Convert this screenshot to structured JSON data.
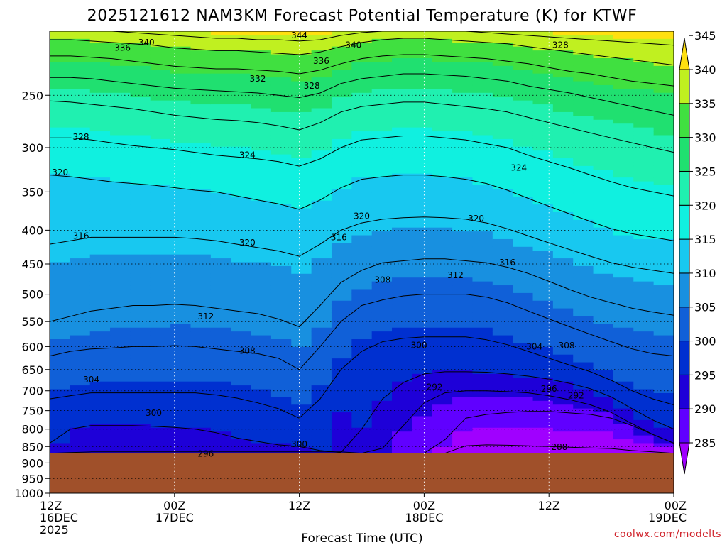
{
  "chart_data": {
    "type": "heatmap",
    "title": "2025121612 NAM3KM Forecast Potential Temperature (K) for KTWF",
    "xlabel": "Forecast Time (UTC)",
    "ylabel": "",
    "y_scale": "log-pressure",
    "y_inverted": true,
    "ylim_hpa": [
      1000,
      200
    ],
    "y_ticks": [
      250,
      300,
      350,
      400,
      450,
      500,
      550,
      600,
      650,
      700,
      750,
      800,
      850,
      900,
      950,
      1000
    ],
    "xlim_hours": [
      0,
      60
    ],
    "x_ticks": [
      {
        "hour": 0,
        "line1": "12Z",
        "line2": "16DEC",
        "line3": "2025"
      },
      {
        "hour": 12,
        "line1": "00Z",
        "line2": "17DEC",
        "line3": ""
      },
      {
        "hour": 24,
        "line1": "12Z",
        "line2": "",
        "line3": ""
      },
      {
        "hour": 36,
        "line1": "00Z",
        "line2": "18DEC",
        "line3": ""
      },
      {
        "hour": 48,
        "line1": "12Z",
        "line2": "",
        "line3": ""
      },
      {
        "hour": 60,
        "line1": "00Z",
        "line2": "19DEC",
        "line3": ""
      }
    ],
    "grid": "dotted",
    "surface_pressure_hpa": 870,
    "colorbar": {
      "levels": [
        285,
        290,
        295,
        300,
        305,
        310,
        315,
        320,
        325,
        330,
        335,
        340,
        345
      ],
      "colors": [
        "#a000ff",
        "#6000ff",
        "#1e00d8",
        "#0030d0",
        "#1060d8",
        "#1890e0",
        "#18c8f0",
        "#10f0e0",
        "#20f0b0",
        "#20e070",
        "#40e040",
        "#c0f020",
        "#ffe010"
      ]
    },
    "isentropes": [
      {
        "theta": 288,
        "pressure_hpa": [
          null,
          null,
          null,
          null,
          null,
          null,
          null,
          null,
          null,
          null,
          null,
          null,
          null,
          null,
          null,
          null,
          null,
          null,
          null,
          870,
          848,
          845,
          846,
          848,
          850,
          852,
          854,
          856,
          862,
          866,
          870
        ]
      },
      {
        "theta": 292,
        "pressure_hpa": [
          null,
          null,
          null,
          null,
          null,
          null,
          null,
          null,
          null,
          null,
          null,
          null,
          null,
          null,
          null,
          null,
          null,
          null,
          870,
          830,
          770,
          760,
          755,
          752,
          752,
          756,
          760,
          770,
          790,
          815,
          840
        ]
      },
      {
        "theta": 296,
        "pressure_hpa": [
          870,
          868,
          866,
          866,
          866,
          866,
          866,
          866,
          866,
          866,
          866,
          866,
          866,
          866,
          866,
          870,
          855,
          790,
          730,
          705,
          700,
          700,
          702,
          705,
          712,
          722,
          735,
          755,
          785,
          815,
          840
        ]
      },
      {
        "theta": 300,
        "pressure_hpa": [
          840,
          800,
          790,
          790,
          790,
          792,
          795,
          800,
          810,
          825,
          835,
          845,
          850,
          862,
          868,
          800,
          720,
          680,
          660,
          655,
          655,
          656,
          660,
          665,
          672,
          682,
          695,
          715,
          745,
          775,
          800
        ]
      },
      {
        "theta": 304,
        "pressure_hpa": [
          720,
          712,
          705,
          705,
          705,
          705,
          705,
          705,
          710,
          718,
          730,
          745,
          770,
          720,
          650,
          610,
          590,
          583,
          580,
          580,
          580,
          586,
          596,
          610,
          625,
          640,
          655,
          675,
          700,
          720,
          735
        ]
      },
      {
        "theta": 308,
        "pressure_hpa": [
          620,
          610,
          605,
          603,
          600,
          600,
          598,
          600,
          605,
          610,
          615,
          625,
          650,
          600,
          550,
          520,
          510,
          503,
          500,
          500,
          500,
          505,
          515,
          530,
          545,
          560,
          575,
          590,
          605,
          615,
          620
        ]
      },
      {
        "theta": 312,
        "pressure_hpa": [
          550,
          540,
          530,
          525,
          520,
          520,
          518,
          520,
          525,
          530,
          535,
          545,
          560,
          520,
          480,
          460,
          448,
          445,
          442,
          442,
          445,
          448,
          455,
          465,
          478,
          492,
          505,
          515,
          525,
          532,
          538
        ]
      },
      {
        "theta": 316,
        "pressure_hpa": [
          420,
          415,
          410,
          410,
          410,
          410,
          410,
          412,
          415,
          420,
          425,
          430,
          438,
          420,
          400,
          390,
          385,
          383,
          382,
          383,
          385,
          390,
          398,
          408,
          418,
          428,
          438,
          448,
          455,
          460,
          465
        ]
      },
      {
        "theta": 320,
        "pressure_hpa": [
          330,
          332,
          335,
          338,
          340,
          342,
          345,
          348,
          350,
          355,
          360,
          365,
          372,
          360,
          345,
          335,
          332,
          330,
          330,
          332,
          335,
          340,
          348,
          358,
          368,
          378,
          388,
          398,
          405,
          410,
          415
        ]
      },
      {
        "theta": 324,
        "pressure_hpa": [
          290,
          290,
          292,
          295,
          298,
          300,
          302,
          305,
          308,
          310,
          312,
          315,
          320,
          312,
          300,
          292,
          290,
          288,
          288,
          290,
          292,
          296,
          300,
          308,
          315,
          322,
          330,
          338,
          345,
          350,
          355
        ]
      },
      {
        "theta": 328,
        "pressure_hpa": [
          255,
          256,
          258,
          260,
          262,
          265,
          268,
          270,
          272,
          273,
          275,
          278,
          282,
          275,
          265,
          260,
          258,
          256,
          256,
          258,
          260,
          262,
          265,
          270,
          275,
          280,
          285,
          290,
          295,
          300,
          305
        ]
      },
      {
        "theta": 332,
        "pressure_hpa": [
          235,
          235,
          236,
          238,
          240,
          242,
          244,
          245,
          246,
          247,
          248,
          250,
          252,
          248,
          240,
          236,
          234,
          232,
          232,
          233,
          234,
          236,
          238,
          242,
          245,
          248,
          252,
          256,
          260,
          264,
          268
        ]
      },
      {
        "theta": 336,
        "pressure_hpa": [
          218,
          218,
          219,
          220,
          222,
          224,
          226,
          227,
          228,
          228,
          229,
          230,
          232,
          229,
          224,
          220,
          218,
          217,
          217,
          218,
          219,
          220,
          222,
          224,
          227,
          230,
          232,
          235,
          238,
          240,
          242
        ]
      },
      {
        "theta": 340,
        "pressure_hpa": [
          206,
          206,
          207,
          208,
          209,
          210,
          212,
          213,
          214,
          214,
          215,
          216,
          217,
          215,
          211,
          208,
          206,
          205,
          205,
          206,
          207,
          208,
          209,
          211,
          213,
          215,
          217,
          219,
          221,
          223,
          225
        ]
      },
      {
        "theta": 344,
        "pressure_hpa": [
          200,
          200,
          200,
          200,
          201,
          202,
          203,
          204,
          205,
          205,
          206,
          206,
          207,
          206,
          203,
          201,
          200,
          200,
          200,
          200,
          200,
          201,
          202,
          203,
          204,
          205,
          206,
          207,
          208,
          209,
          210
        ]
      }
    ],
    "contour_labels": [
      {
        "text": "344",
        "hour": 24.0,
        "p": 203
      },
      {
        "text": "340",
        "hour": 9.3,
        "p": 208
      },
      {
        "text": "336",
        "hour": 7.0,
        "p": 212
      },
      {
        "text": "340",
        "hour": 29.2,
        "p": 210
      },
      {
        "text": "336",
        "hour": 26.1,
        "p": 222
      },
      {
        "text": "328",
        "hour": 49.1,
        "p": 210
      },
      {
        "text": "332",
        "hour": 20.0,
        "p": 236
      },
      {
        "text": "328",
        "hour": 25.2,
        "p": 242
      },
      {
        "text": "328",
        "hour": 3.0,
        "p": 289
      },
      {
        "text": "324",
        "hour": 19.0,
        "p": 308
      },
      {
        "text": "324",
        "hour": 45.1,
        "p": 322
      },
      {
        "text": "320",
        "hour": 1.0,
        "p": 327
      },
      {
        "text": "320",
        "hour": 30.0,
        "p": 381
      },
      {
        "text": "320",
        "hour": 41.0,
        "p": 384
      },
      {
        "text": "316",
        "hour": 3.0,
        "p": 408
      },
      {
        "text": "320",
        "hour": 19.0,
        "p": 418
      },
      {
        "text": "316",
        "hour": 27.8,
        "p": 410
      },
      {
        "text": "316",
        "hour": 44.0,
        "p": 448
      },
      {
        "text": "308",
        "hour": 32.0,
        "p": 476
      },
      {
        "text": "312",
        "hour": 39.0,
        "p": 468
      },
      {
        "text": "312",
        "hour": 15.0,
        "p": 540
      },
      {
        "text": "300",
        "hour": 35.5,
        "p": 597
      },
      {
        "text": "304",
        "hour": 46.6,
        "p": 600
      },
      {
        "text": "308",
        "hour": 49.7,
        "p": 598
      },
      {
        "text": "308",
        "hour": 19.0,
        "p": 609
      },
      {
        "text": "304",
        "hour": 4.0,
        "p": 673
      },
      {
        "text": "292",
        "hour": 37.0,
        "p": 691
      },
      {
        "text": "296",
        "hour": 48.0,
        "p": 695
      },
      {
        "text": "292",
        "hour": 50.6,
        "p": 712
      },
      {
        "text": "300",
        "hour": 10.0,
        "p": 756
      },
      {
        "text": "300",
        "hour": 24.0,
        "p": 843
      },
      {
        "text": "288",
        "hour": 49.0,
        "p": 852
      },
      {
        "text": "296",
        "hour": 15.0,
        "p": 872
      }
    ]
  },
  "credit": "coolwx.com/modelts"
}
